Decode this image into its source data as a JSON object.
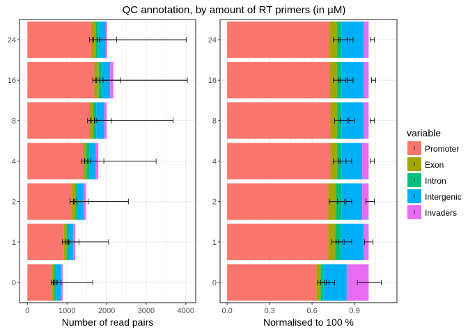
{
  "chart_data": {
    "type": "bar",
    "stacked": true,
    "orientation": "horizontal",
    "title": "QC annotation, by amount of RT primers (in µM)",
    "categories": [
      "0",
      "1",
      "2",
      "4",
      "8",
      "16",
      "24"
    ],
    "legend": {
      "title": "variable",
      "position": "right",
      "items": [
        "Promoter",
        "Exon",
        "Intron",
        "Intergenic",
        "Invaders"
      ]
    },
    "colors": {
      "Promoter": "#F8766D",
      "Exon": "#A3A500",
      "Intron": "#00BF7D",
      "Intergenic": "#00B0F6",
      "Invaders": "#E76BF3",
      "panel_border": "#333333",
      "grid": "#ebebeb",
      "error_bar": "#000000"
    },
    "panels": [
      {
        "xlabel": "Number of read pairs",
        "xlim": [
          -200,
          4250
        ],
        "xticks": [
          0,
          1000,
          2000,
          3000,
          4000
        ],
        "tick_labels": [
          "0",
          "1000",
          "2000",
          "3000",
          "4000"
        ],
        "grid": true,
        "series": [
          {
            "name": "Promoter",
            "values": [
              620,
              920,
              1120,
              1400,
              1560,
              1690,
              1610
            ]
          },
          {
            "name": "Exon",
            "values": [
              60,
              70,
              90,
              90,
              100,
              110,
              110
            ]
          },
          {
            "name": "Intron",
            "values": [
              40,
              50,
              60,
              70,
              80,
              80,
              80
            ]
          },
          {
            "name": "Intergenic",
            "values": [
              130,
              120,
              150,
              170,
              200,
              210,
              180
            ]
          },
          {
            "name": "Invaders",
            "values": [
              40,
              50,
              60,
              60,
              60,
              80,
              30
            ]
          }
        ],
        "error_bars": [
          [
            {
              "lo": 600,
              "hi": 650
            },
            {
              "lo": 660,
              "hi": 720
            },
            {
              "lo": 680,
              "hi": 850
            },
            {
              "lo": 750,
              "hi": 1650
            }
          ],
          [
            {
              "lo": 880,
              "hi": 960
            },
            {
              "lo": 960,
              "hi": 1040
            },
            {
              "lo": 1000,
              "hi": 1300
            },
            {
              "lo": 1050,
              "hi": 2050
            }
          ],
          [
            {
              "lo": 1080,
              "hi": 1160
            },
            {
              "lo": 1170,
              "hi": 1250
            },
            {
              "lo": 1200,
              "hi": 1540
            },
            {
              "lo": 1250,
              "hi": 2550
            }
          ],
          [
            {
              "lo": 1360,
              "hi": 1440
            },
            {
              "lo": 1450,
              "hi": 1530
            },
            {
              "lo": 1520,
              "hi": 1930
            },
            {
              "lo": 1600,
              "hi": 3250
            }
          ],
          [
            {
              "lo": 1520,
              "hi": 1600
            },
            {
              "lo": 1610,
              "hi": 1700
            },
            {
              "lo": 1690,
              "hi": 2120
            },
            {
              "lo": 1750,
              "hi": 3680
            }
          ],
          [
            {
              "lo": 1650,
              "hi": 1730
            },
            {
              "lo": 1750,
              "hi": 1830
            },
            {
              "lo": 1830,
              "hi": 2360
            },
            {
              "lo": 1910,
              "hi": 4040
            }
          ],
          [
            {
              "lo": 1570,
              "hi": 1650
            },
            {
              "lo": 1670,
              "hi": 1760
            },
            {
              "lo": 1760,
              "hi": 2250
            },
            {
              "lo": 1820,
              "hi": 4010
            }
          ]
        ]
      },
      {
        "xlabel": "Normalised to 100 %",
        "xlim": [
          -0.05,
          1.2
        ],
        "xticks": [
          0.0,
          0.3,
          0.6,
          0.9
        ],
        "tick_labels": [
          "0.0",
          "0.3",
          "0.6",
          "0.9"
        ],
        "grid": true,
        "series": [
          {
            "name": "Promoter",
            "values": [
              0.63,
              0.715,
              0.715,
              0.73,
              0.73,
              0.725,
              0.72
            ]
          },
          {
            "name": "Exon",
            "values": [
              0.03,
              0.05,
              0.055,
              0.045,
              0.045,
              0.05,
              0.055
            ]
          },
          {
            "name": "Intron",
            "values": [
              0.02,
              0.04,
              0.04,
              0.035,
              0.035,
              0.035,
              0.035
            ]
          },
          {
            "name": "Intergenic",
            "values": [
              0.165,
              0.16,
              0.145,
              0.145,
              0.155,
              0.155,
              0.155
            ]
          },
          {
            "name": "Invaders",
            "values": [
              0.155,
              0.035,
              0.045,
              0.045,
              0.035,
              0.035,
              0.035
            ]
          }
        ],
        "error_bars": [
          [
            {
              "lo": 0.64,
              "hi": 0.69
            },
            {
              "lo": 0.66,
              "hi": 0.72
            },
            {
              "lo": 0.7,
              "hi": 0.76
            },
            {
              "lo": 0.92,
              "hi": 1.09
            }
          ],
          [
            {
              "lo": 0.74,
              "hi": 0.79
            },
            {
              "lo": 0.77,
              "hi": 0.82
            },
            {
              "lo": 0.83,
              "hi": 0.88
            },
            {
              "lo": 0.97,
              "hi": 1.03
            }
          ],
          [
            {
              "lo": 0.72,
              "hi": 0.78
            },
            {
              "lo": 0.78,
              "hi": 0.83
            },
            {
              "lo": 0.84,
              "hi": 0.88
            },
            {
              "lo": 0.98,
              "hi": 1.04
            }
          ],
          [
            {
              "lo": 0.75,
              "hi": 0.8
            },
            {
              "lo": 0.79,
              "hi": 0.84
            },
            {
              "lo": 0.84,
              "hi": 0.88
            },
            {
              "lo": 1.01,
              "hi": 1.04
            }
          ],
          [
            {
              "lo": 0.76,
              "hi": 0.8
            },
            {
              "lo": 0.8,
              "hi": 0.85
            },
            {
              "lo": 0.86,
              "hi": 0.9
            },
            {
              "lo": 1.01,
              "hi": 1.04
            }
          ],
          [
            {
              "lo": 0.75,
              "hi": 0.8
            },
            {
              "lo": 0.79,
              "hi": 0.84
            },
            {
              "lo": 0.85,
              "hi": 0.89
            },
            {
              "lo": 1.02,
              "hi": 1.05
            }
          ],
          [
            {
              "lo": 0.75,
              "hi": 0.8
            },
            {
              "lo": 0.79,
              "hi": 0.85
            },
            {
              "lo": 0.85,
              "hi": 0.89
            },
            {
              "lo": 1.01,
              "hi": 1.04
            }
          ]
        ]
      }
    ]
  }
}
